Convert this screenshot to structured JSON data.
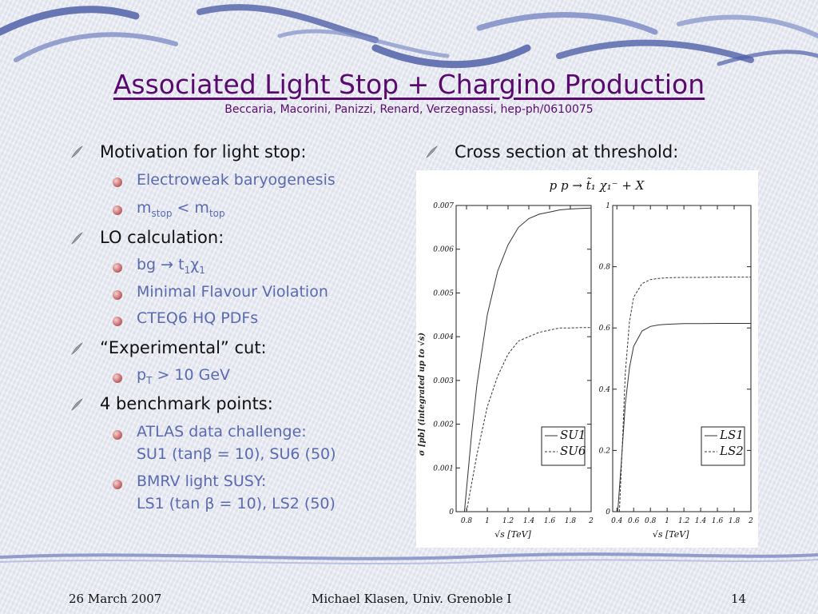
{
  "slide": {
    "title": "Associated Light Stop + Chargino Production",
    "subtitle": "Beccaria, Macorini, Panizzi, Renard, Verzegnassi, hep-ph/0610075",
    "left_column": {
      "motivation": "Motivation for light stop:",
      "motivation_items": [
        "Electroweak baryogenesis",
        "m",
        "stop",
        " < m",
        "top"
      ],
      "lo": "LO calculation:",
      "lo_item1": {
        "a": "bg ",
        "arrow": "→",
        "b": " t",
        "s1": "1",
        "chi": "χ",
        "s2": "1"
      },
      "lo_item2": "Minimal Flavour Violation",
      "lo_item3": "CTEQ6 HQ PDFs",
      "cut": "“Experimental” cut:",
      "cut_item": {
        "p": "p",
        "T": "T",
        "rest": " > 10 GeV"
      },
      "bench": "4 benchmark points:",
      "bench_item1_l1": "ATLAS data challenge:",
      "bench_item1_l2": "SU1 (tanβ = 10), SU6 (50)",
      "bench_item2_l1": "BMRV light SUSY:",
      "bench_item2_l2": "LS1 (tan β = 10), LS2 (50)"
    },
    "right_column": {
      "heading": "Cross section at threshold:"
    }
  },
  "footer": {
    "date": "26 March 2007",
    "author": "Michael Klasen, Univ. Grenoble I",
    "page": "14"
  },
  "colors": {
    "title": "#5a0a6e",
    "sub_bullet_text": "#5a6ab0",
    "bullet_ball": "#c56a6a"
  },
  "chart_data": [
    {
      "type": "line",
      "title": "p p → t̃₁ χ₁⁻ + X",
      "xlabel": "√s  [TeV]",
      "ylabel": "σ [pb]  (integrated up to √s)",
      "xlim": [
        0.7,
        2.0
      ],
      "ylim": [
        0,
        0.007
      ],
      "xticks": [
        "0.8",
        "1",
        "1.2",
        "1.4",
        "1.6",
        "1.8",
        "2"
      ],
      "yticks": [
        "0",
        "0.001",
        "0.002",
        "0.003",
        "0.004",
        "0.005",
        "0.006",
        "0.007"
      ],
      "legend_position": "bottom-right",
      "series": [
        {
          "name": "SU1",
          "style": "solid",
          "x": [
            0.78,
            0.85,
            0.9,
            1.0,
            1.1,
            1.2,
            1.3,
            1.4,
            1.5,
            1.6,
            1.7,
            1.8,
            1.9,
            2.0
          ],
          "y": [
            0,
            0.0018,
            0.0029,
            0.0045,
            0.0055,
            0.0061,
            0.0065,
            0.0067,
            0.0068,
            0.00685,
            0.0069,
            0.00692,
            0.00693,
            0.00694
          ]
        },
        {
          "name": "SU6",
          "style": "dashed",
          "x": [
            0.8,
            0.9,
            1.0,
            1.1,
            1.2,
            1.3,
            1.4,
            1.5,
            1.6,
            1.7,
            1.8,
            1.9,
            2.0
          ],
          "y": [
            0,
            0.0013,
            0.0024,
            0.0031,
            0.0036,
            0.0039,
            0.004,
            0.0041,
            0.00415,
            0.0042,
            0.0042,
            0.00421,
            0.00421
          ]
        }
      ]
    },
    {
      "type": "line",
      "xlabel": "√s  [TeV]",
      "xlim": [
        0.35,
        2.0
      ],
      "ylim": [
        0,
        1
      ],
      "xticks": [
        "0.4",
        "0.6",
        "0.8",
        "1",
        "1.2",
        "1.4",
        "1.6",
        "1.8",
        "2"
      ],
      "yticks": [
        "0",
        "0.2",
        "0.4",
        "0.6",
        "0.8",
        "1"
      ],
      "legend_position": "bottom-right",
      "series": [
        {
          "name": "LS1",
          "style": "solid",
          "x": [
            0.41,
            0.45,
            0.5,
            0.55,
            0.6,
            0.7,
            0.8,
            0.9,
            1.0,
            1.2,
            1.4,
            1.6,
            1.8,
            2.0
          ],
          "y": [
            0,
            0.15,
            0.35,
            0.47,
            0.54,
            0.59,
            0.605,
            0.61,
            0.612,
            0.614,
            0.614,
            0.615,
            0.615,
            0.615
          ]
        },
        {
          "name": "LS2",
          "style": "dashed",
          "x": [
            0.43,
            0.47,
            0.5,
            0.55,
            0.6,
            0.7,
            0.8,
            0.9,
            1.0,
            1.2,
            1.4,
            1.6,
            1.8,
            2.0
          ],
          "y": [
            0,
            0.25,
            0.45,
            0.62,
            0.7,
            0.745,
            0.758,
            0.762,
            0.764,
            0.765,
            0.765,
            0.766,
            0.766,
            0.766
          ]
        }
      ]
    }
  ]
}
